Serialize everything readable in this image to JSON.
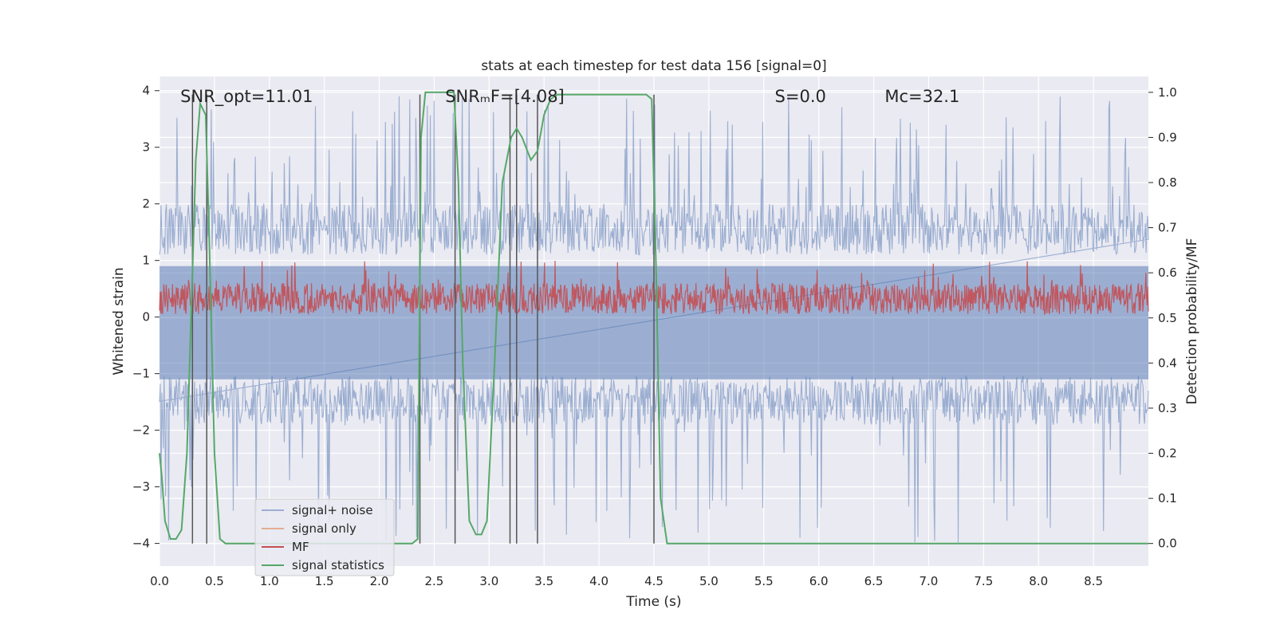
{
  "chart_data": {
    "type": "line",
    "title": "stats at each timestep for test data 156 [signal=0]",
    "xlabel": "Time (s)",
    "ylabel": "Whitened strain",
    "y2label": "Detection probability/MF",
    "xlim": [
      0.0,
      9.0
    ],
    "ylim": [
      -4.4,
      4.25
    ],
    "y2lim": [
      -0.05,
      1.035
    ],
    "x_ticks": [
      0.0,
      0.5,
      1.0,
      1.5,
      2.0,
      2.5,
      3.0,
      3.5,
      4.0,
      4.5,
      5.0,
      5.5,
      6.0,
      6.5,
      7.0,
      7.5,
      8.0,
      8.5
    ],
    "x_tick_labels": [
      "0.0",
      "0.5",
      "1.0",
      "1.5",
      "2.0",
      "2.5",
      "3.0",
      "3.5",
      "4.0",
      "4.5",
      "5.0",
      "5.5",
      "6.0",
      "6.5",
      "7.0",
      "7.5",
      "8.0",
      "8.5"
    ],
    "y_ticks": [
      -4,
      -3,
      -2,
      -1,
      0,
      1,
      2,
      3,
      4
    ],
    "y_tick_labels": [
      "−4",
      "−3",
      "−2",
      "−1",
      "0",
      "1",
      "2",
      "3",
      "4"
    ],
    "y2_ticks": [
      0.0,
      0.1,
      0.2,
      0.3,
      0.4,
      0.5,
      0.6,
      0.7,
      0.8,
      0.9,
      1.0
    ],
    "y2_tick_labels": [
      "0.0",
      "0.1",
      "0.2",
      "0.3",
      "0.4",
      "0.5",
      "0.6",
      "0.7",
      "0.8",
      "0.9",
      "1.0"
    ],
    "grid": true,
    "legend_position": "lower-left",
    "annotations": [
      {
        "text": "SNR_opt=11.01",
        "x": 0.19,
        "y": 3.9
      },
      {
        "text": "SNRₘF=[4.08]",
        "x": 2.6,
        "y": 3.9
      },
      {
        "text": "S=0.0",
        "x": 5.6,
        "y": 3.9
      },
      {
        "text": "Mᴄ=32.1",
        "x": 6.6,
        "y": 3.9
      }
    ],
    "vlines": [
      0.3,
      0.43,
      2.37,
      2.69,
      3.19,
      3.25,
      3.44,
      4.5
    ],
    "series": [
      {
        "name": "signal+ noise",
        "color": "#4c72b0",
        "axis": "left",
        "band_min": -1.9,
        "band_max": 2.0,
        "spike_min": -4.0,
        "spike_max": 3.9
      },
      {
        "name": "signal only",
        "color": "#dd8452",
        "axis": "left",
        "values_note": ""
      },
      {
        "name": "MF",
        "color": "#c44e52",
        "axis": "left",
        "band_min": 0.05,
        "band_max": 0.6,
        "spike_max": 1.0
      },
      {
        "name": "signal statistics",
        "color": "#55a868",
        "axis": "right",
        "x": [
          0.0,
          0.02,
          0.05,
          0.1,
          0.15,
          0.2,
          0.25,
          0.3,
          0.33,
          0.37,
          0.42,
          0.45,
          0.5,
          0.55,
          0.6,
          0.65,
          0.7,
          1.0,
          1.5,
          2.0,
          2.3,
          2.35,
          2.38,
          2.42,
          2.48,
          2.6,
          2.68,
          2.72,
          2.76,
          2.82,
          2.88,
          2.93,
          2.98,
          3.05,
          3.12,
          3.2,
          3.25,
          3.3,
          3.38,
          3.44,
          3.5,
          3.56,
          3.62,
          3.7,
          4.0,
          4.3,
          4.43,
          4.48,
          4.52,
          4.56,
          4.62,
          4.7,
          5.0,
          6.0,
          7.0,
          8.0,
          9.0
        ],
        "values": [
          0.2,
          0.15,
          0.05,
          0.01,
          0.01,
          0.03,
          0.2,
          0.6,
          0.85,
          0.975,
          0.95,
          0.7,
          0.2,
          0.01,
          0.0,
          0.0,
          0.0,
          0.0,
          0.0,
          0.0,
          0.0,
          0.01,
          0.9,
          1.0,
          1.0,
          1.0,
          1.0,
          0.8,
          0.4,
          0.05,
          0.02,
          0.02,
          0.05,
          0.4,
          0.8,
          0.9,
          0.92,
          0.9,
          0.85,
          0.87,
          0.95,
          0.985,
          0.995,
          0.995,
          0.995,
          0.995,
          0.995,
          0.985,
          0.6,
          0.1,
          0.0,
          0.0,
          0.0,
          0.0,
          0.0,
          0.0,
          0.0
        ]
      }
    ]
  }
}
